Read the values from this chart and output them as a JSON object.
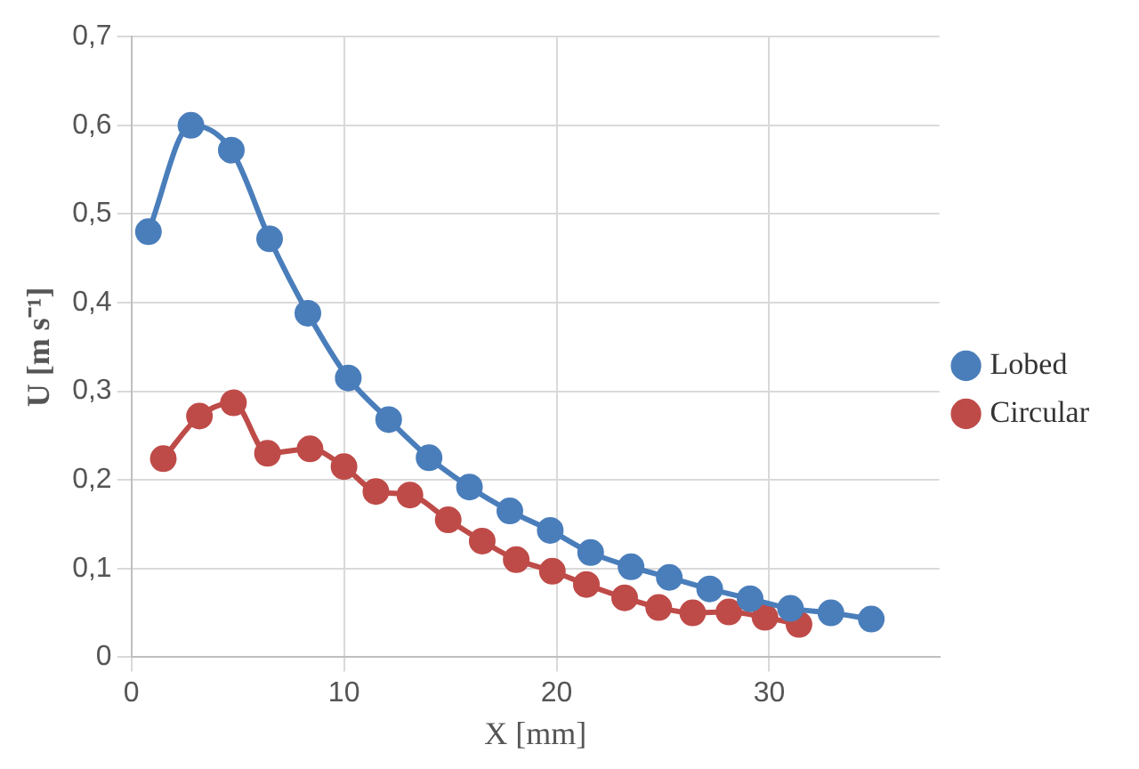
{
  "chart_data": {
    "type": "line",
    "xlabel": "X [mm]",
    "ylabel": "U [m s⁻¹]",
    "xlim": [
      0,
      38
    ],
    "xticks": [
      0,
      10,
      20,
      30
    ],
    "ylim": [
      0,
      0.7
    ],
    "yticks": [
      {
        "value": 0,
        "label": "0"
      },
      {
        "value": 0.1,
        "label": "0,1"
      },
      {
        "value": 0.2,
        "label": "0,2"
      },
      {
        "value": 0.3,
        "label": "0,3"
      },
      {
        "value": 0.4,
        "label": "0,4"
      },
      {
        "value": 0.5,
        "label": "0,5"
      },
      {
        "value": 0.6,
        "label": "0,6"
      },
      {
        "value": 0.7,
        "label": "0,7"
      }
    ],
    "grid": true,
    "legend": "right",
    "marker": "circle",
    "line_style": "solid",
    "series": [
      {
        "name": "Lobed",
        "color": "#4a7ebb",
        "x": [
          0.8,
          2.8,
          4.7,
          6.5,
          8.3,
          10.2,
          12.1,
          14,
          15.9,
          17.8,
          19.7,
          21.6,
          23.5,
          25.3,
          27.2,
          29.1,
          31,
          32.9,
          34.8
        ],
        "values": [
          0.48,
          0.6,
          0.572,
          0.472,
          0.388,
          0.315,
          0.268,
          0.225,
          0.192,
          0.165,
          0.143,
          0.118,
          0.102,
          0.09,
          0.077,
          0.066,
          0.055,
          0.05,
          0.043
        ]
      },
      {
        "name": "Circular",
        "color": "#be4b48",
        "x": [
          1.5,
          3.2,
          4.8,
          6.4,
          8.4,
          10,
          11.5,
          13.1,
          14.9,
          16.5,
          18.1,
          19.8,
          21.4,
          23.2,
          24.8,
          26.4,
          28.1,
          29.8,
          31.4
        ],
        "values": [
          0.224,
          0.272,
          0.287,
          0.23,
          0.235,
          0.215,
          0.187,
          0.183,
          0.155,
          0.131,
          0.11,
          0.097,
          0.082,
          0.067,
          0.056,
          0.05,
          0.051,
          0.045,
          0.037
        ]
      }
    ]
  }
}
